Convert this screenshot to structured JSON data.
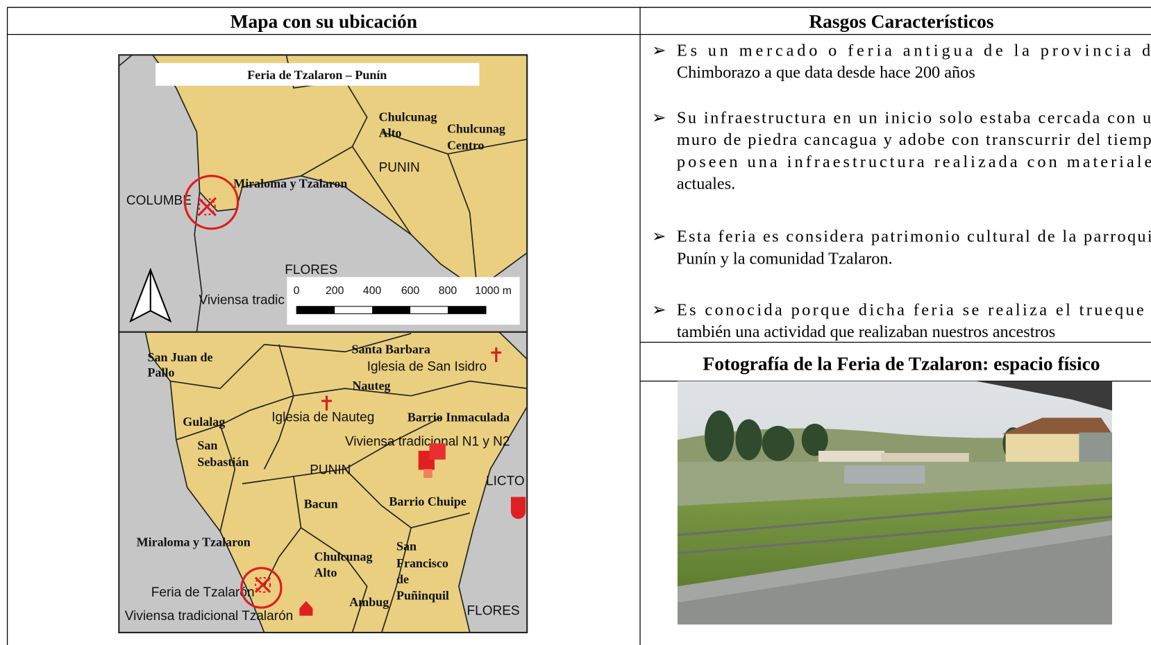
{
  "header": {
    "left": "Mapa con su ubicación",
    "right": "Rasgos Característicos"
  },
  "map1": {
    "title": "Feria de Tzalaron – Punín",
    "labels": [
      "Chulcunag",
      "Alto",
      "Chulcunag",
      "Centro",
      "PUNIN",
      "Miraloma y Tzalaron",
      "COLUMBE",
      "FLORES",
      "Viviensa tradic"
    ],
    "scale": [
      "0",
      "200",
      "400",
      "600",
      "800",
      "1000 m"
    ]
  },
  "map2": {
    "labels": [
      "San Juan de",
      "Pallo",
      "Santa Barbara",
      "Iglesia de San Isidro",
      "Nauteg",
      "Gulalag",
      "Iglesia de Nauteg",
      "Barrio Inmaculada",
      "San",
      "Sebastián",
      "Viviensa tradicional N1 y N2",
      "PUNIN",
      "LICTO",
      "Bacun",
      "Barrio Chuipe",
      "Miraloma y Tzalaron",
      "Chulcunag",
      "Alto",
      "San",
      "Francisco",
      "de",
      "Puñinquil",
      "Feria de Tzalarón",
      "Ambug",
      "FLORES",
      "Viviensa tradicional Tzalarón"
    ]
  },
  "features": {
    "items": [
      [
        "Es un mercado o feria antigua de la provincia de",
        "Chimborazo a que data desde hace 200 años"
      ],
      [
        "Su infraestructura en un inicio solo estaba cercada con un",
        "muro de piedra cancagua y adobe con transcurrir del tiempo",
        "poseen una infraestructura realizada con materiales",
        "actuales."
      ],
      [
        "Esta feria es considera patrimonio cultural de la parroquia",
        "Punín y la comunidad Tzalaron."
      ],
      [
        "Es conocida porque dicha feria se realiza el trueque o",
        "también una actividad que realizaban nuestros ancestros"
      ]
    ]
  },
  "photo": {
    "title": "Fotografía de la Feria de Tzalaron: espacio físico"
  }
}
